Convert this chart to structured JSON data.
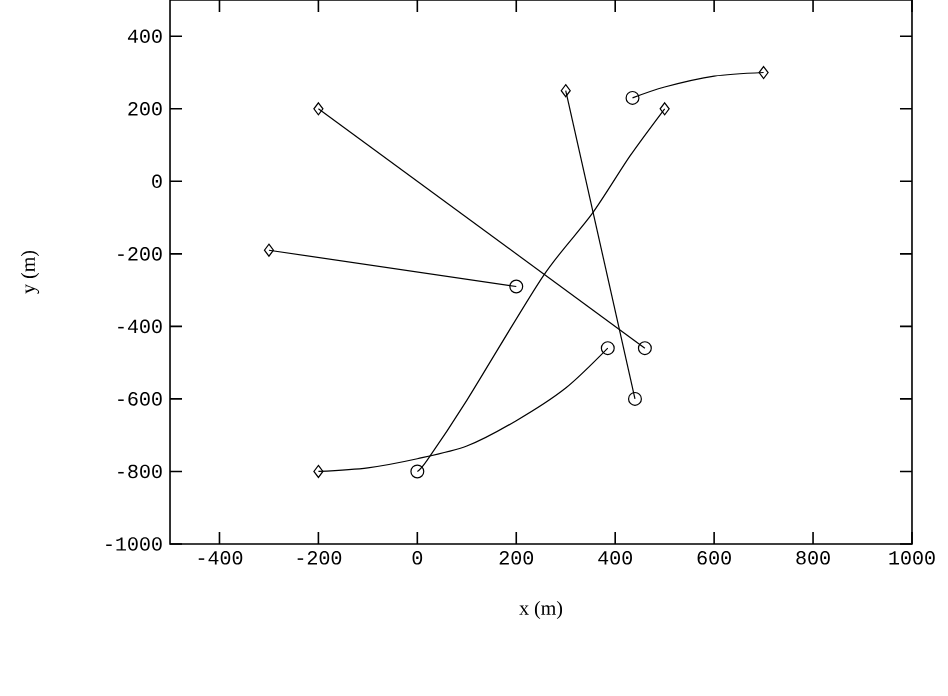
{
  "chart_data": {
    "type": "line",
    "xlabel": "x (m)",
    "ylabel": "y (m)",
    "xlim": [
      -500,
      1000
    ],
    "ylim": [
      -1000,
      500
    ],
    "xticks": [
      -400,
      -200,
      0,
      200,
      400,
      600,
      800,
      1000
    ],
    "yticks": [
      -1000,
      -800,
      -600,
      -400,
      -200,
      0,
      200,
      400
    ],
    "grid": false,
    "marker": "none",
    "line_style": "solid",
    "series": [
      {
        "color": "#000000",
        "x": [
          -200,
          460
        ],
        "values": [
          200,
          -460
        ]
      },
      {
        "color": "#000000",
        "x": [
          -300,
          200
        ],
        "values": [
          -190,
          -290
        ]
      },
      {
        "color": "#000000",
        "x": [
          300,
          440
        ],
        "values": [
          250,
          -600
        ]
      },
      {
        "color": "#000000",
        "x": [
          500,
          430,
          353,
          253,
          100,
          20,
          0
        ],
        "values": [
          200,
          70,
          -90,
          -264,
          -604,
          -769,
          -800
        ]
      },
      {
        "color": "#000000",
        "x": [
          -200,
          -100,
          0,
          100,
          200,
          300,
          385
        ],
        "values": [
          -800,
          -790,
          -765,
          -730,
          -660,
          -570,
          -460
        ]
      },
      {
        "color": "#000000",
        "x": [
          700,
          600,
          500,
          435
        ],
        "values": [
          300,
          290,
          260,
          230
        ]
      },
      {
        "type": "scatter",
        "marker": "diamond",
        "color": "#000000",
        "x": [
          -200,
          -300,
          300,
          500,
          -200,
          700
        ],
        "values": [
          200,
          -190,
          250,
          200,
          -800,
          300
        ]
      },
      {
        "type": "scatter",
        "marker": "circle",
        "color": "#000000",
        "x": [
          460,
          200,
          440,
          0,
          385,
          435
        ],
        "values": [
          -460,
          -290,
          -600,
          -800,
          -460,
          230
        ]
      }
    ]
  }
}
